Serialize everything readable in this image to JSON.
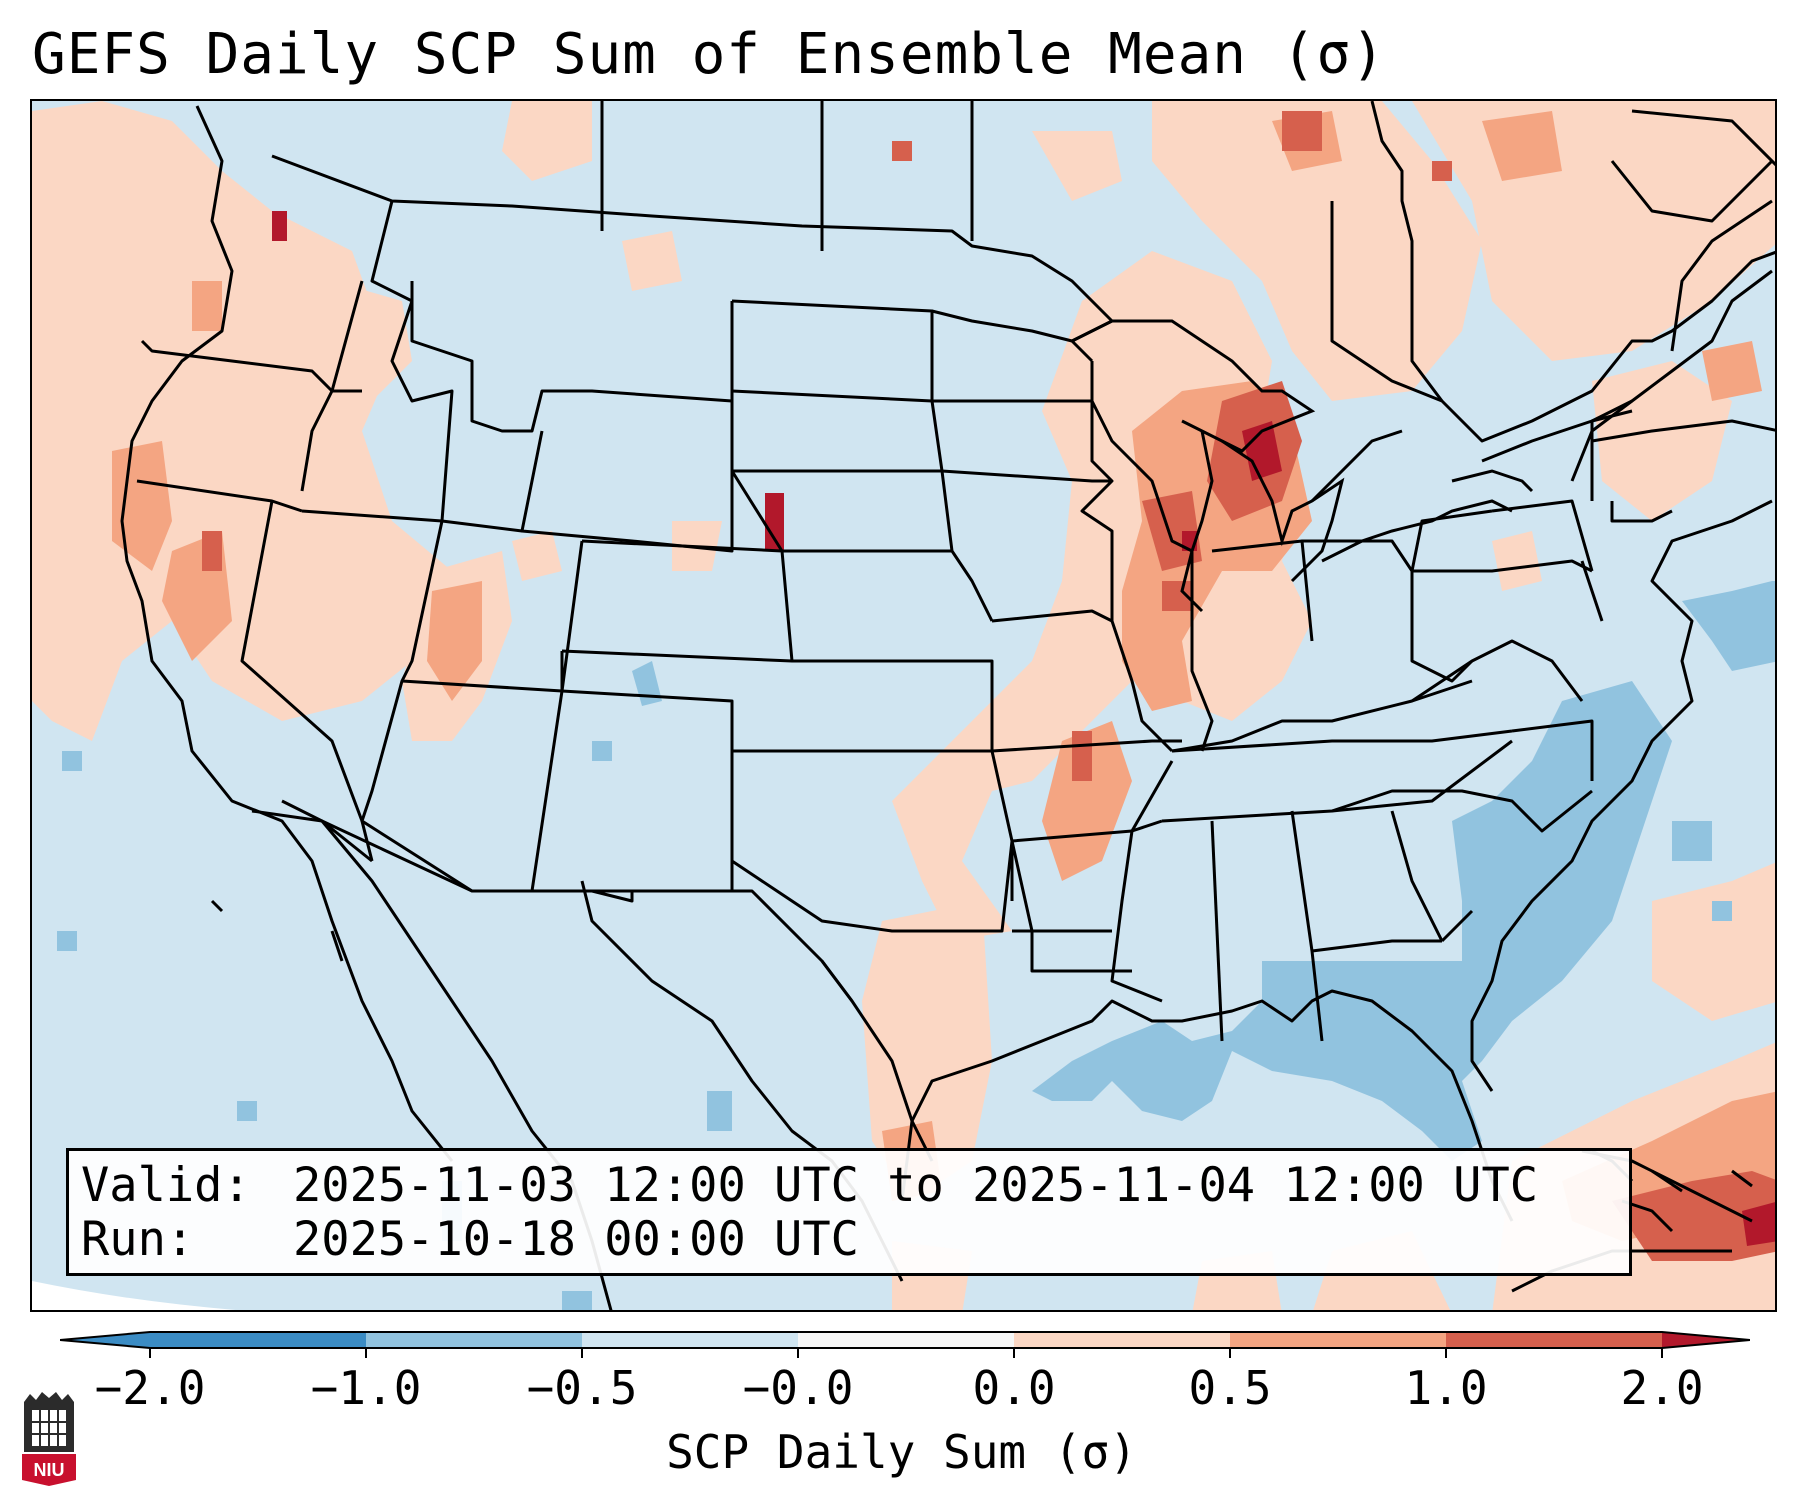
{
  "title": "GEFS Daily SCP Sum of Ensemble Mean (σ)",
  "info": {
    "valid_label": "Valid:",
    "valid_value": "2025-11-03 12:00 UTC to 2025-11-04 12:00 UTC",
    "run_label": "Run:",
    "run_value": "2025-10-18 00:00 UTC"
  },
  "colorbar": {
    "label": "SCP Daily Sum (σ)",
    "ticks": [
      "−2.0",
      "−1.0",
      "−0.5",
      "−0.0",
      "0.0",
      "0.5",
      "1.0",
      "2.0"
    ],
    "colors": [
      "#3b8cc4",
      "#91c3df",
      "#d0e5f1",
      "#f7f7f7",
      "#fbd7c4",
      "#f4a582",
      "#d6604d",
      "#b2182b"
    ]
  },
  "logo": {
    "text": "NIU"
  },
  "map": {
    "background_color": "#d0e5f1",
    "anomaly_regions": [
      "Pacific Northwest coast",
      "California coast",
      "Utah",
      "Nebraska panhandle",
      "Great Lakes / Michigan",
      "Illinois",
      "Arkansas",
      "Ontario / Quebec",
      "Gulf coast Texas",
      "Caribbean",
      "Atlantic off Carolinas",
      "Gulf of Mexico"
    ]
  }
}
